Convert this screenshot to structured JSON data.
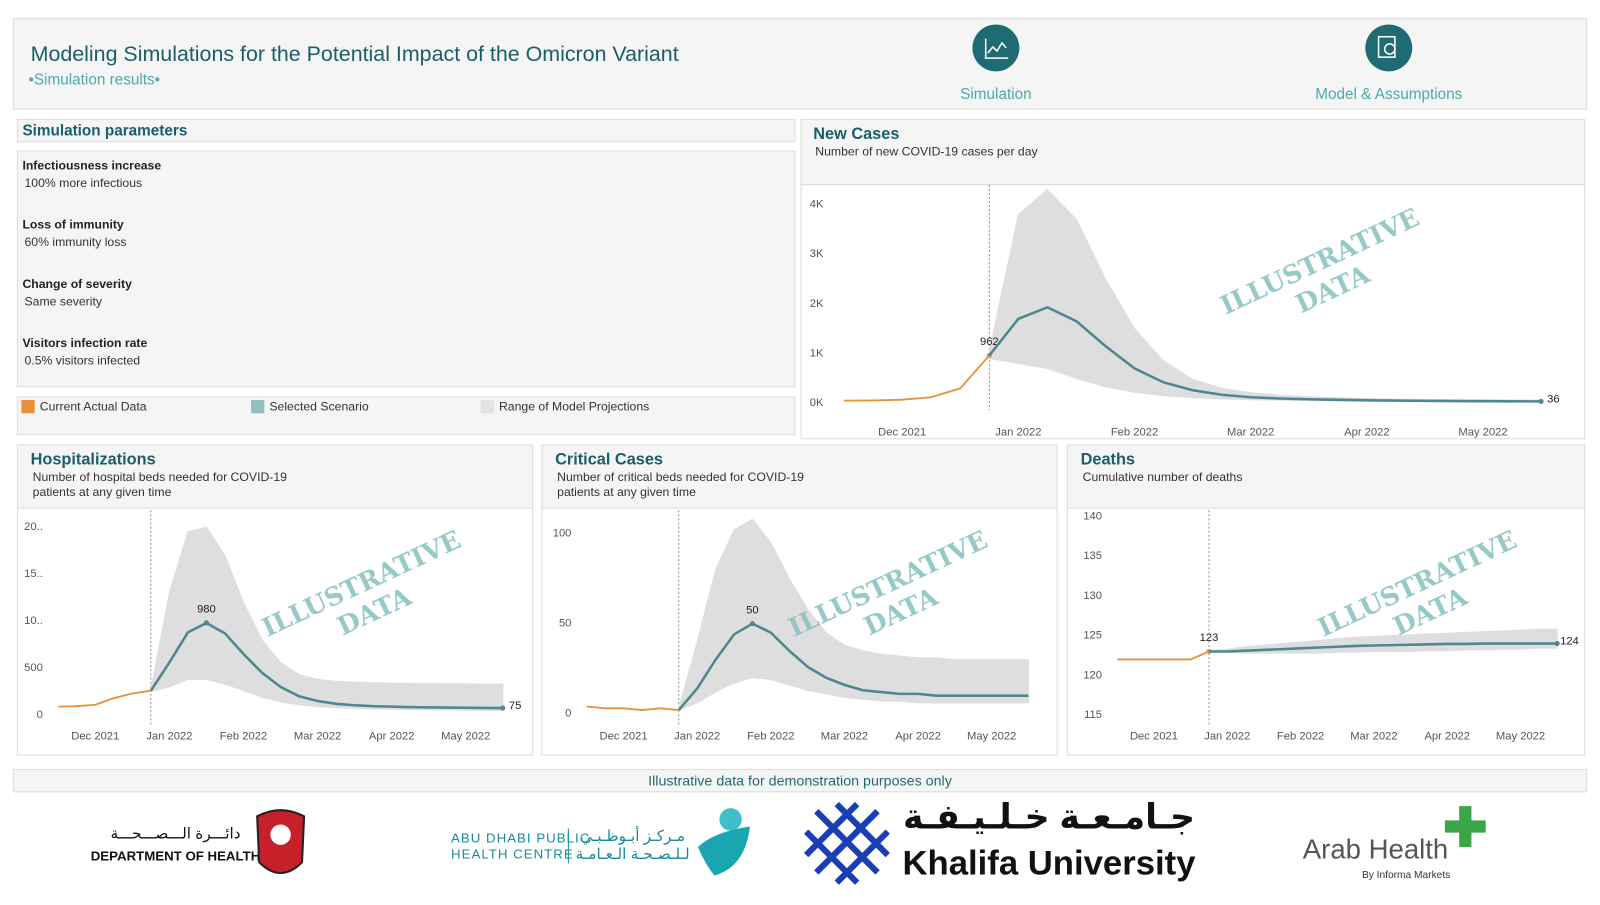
{
  "header": {
    "title": "Modeling Simulations for the Potential Impact of the Omicron Variant",
    "subtitle": "•Simulation results•",
    "nav": [
      "Simulation",
      "Model & Assumptions"
    ]
  },
  "parameters": {
    "title": "Simulation parameters",
    "items": [
      {
        "label": "Infectiousness increase",
        "value": "100% more infectious"
      },
      {
        "label": "Loss of immunity",
        "value": "60% immunity loss"
      },
      {
        "label": "Change of severity",
        "value": "Same severity"
      },
      {
        "label": "Visitors infection rate",
        "value": "0.5% visitors infected"
      }
    ]
  },
  "legend": [
    {
      "name": "Current Actual Data",
      "color": "#e8913a"
    },
    {
      "name": "Selected Scenario",
      "color": "#8fbfbf"
    },
    {
      "name": "Range of Model Projections",
      "color": "#e3e3e3"
    }
  ],
  "chart_data": [
    {
      "type": "line",
      "title": "New Cases",
      "subtitle": [
        "Number of new COVID-19 cases per day"
      ],
      "watermark": [
        "ILLUSTRATIVE",
        "DATA"
      ],
      "categories": [
        null,
        null,
        "Dec 2021",
        null,
        null,
        null,
        "Jan 2022",
        null,
        null,
        null,
        "Feb 2022",
        null,
        null,
        null,
        "Mar 2022",
        null,
        null,
        null,
        "Apr 2022",
        null,
        null,
        null,
        "May 2022",
        null,
        null,
        null
      ],
      "ylim": [
        -100,
        4400
      ],
      "yticks": [
        {
          "value": 0,
          "label": "0K"
        },
        {
          "value": 1000,
          "label": "1K"
        },
        {
          "value": 2000,
          "label": "2K"
        },
        {
          "value": 3000,
          "label": "3K"
        },
        {
          "value": 4000,
          "label": "4K"
        }
      ],
      "series": [
        {
          "color": "#e8913a",
          "values": [
            50,
            55,
            70,
            120,
            300,
            962,
            null,
            null,
            null,
            null,
            null,
            null,
            null,
            null,
            null,
            null,
            null,
            null,
            null,
            null,
            null,
            null,
            null,
            null,
            null,
            null
          ],
          "labeled_points": [
            5
          ]
        },
        {
          "color": "#4e878f",
          "values": [
            null,
            null,
            null,
            null,
            null,
            962,
            1700,
            1930,
            1650,
            1150,
            700,
            420,
            260,
            170,
            120,
            95,
            80,
            68,
            58,
            52,
            47,
            43,
            40,
            38,
            36,
            null
          ],
          "labeled_points": [
            24
          ]
        },
        {
          "color": "#dedede",
          "low": [
            null,
            null,
            null,
            null,
            null,
            900,
            800,
            700,
            500,
            330,
            220,
            150,
            110,
            85,
            70,
            60,
            52,
            46,
            41,
            37,
            34,
            31,
            29,
            27,
            26,
            null
          ],
          "high": [
            null,
            null,
            null,
            null,
            null,
            1050,
            3800,
            4300,
            3700,
            2500,
            1500,
            850,
            480,
            300,
            210,
            160,
            130,
            110,
            95,
            85,
            78,
            72,
            68,
            65,
            62,
            null
          ]
        }
      ]
    },
    {
      "type": "line",
      "title": "Hospitalizations",
      "subtitle": [
        "Number of hospital beds needed for COVID-19",
        "patients at any given time"
      ],
      "watermark": [
        "ILLUSTRATIVE",
        "DATA"
      ],
      "categories": [
        null,
        null,
        "Dec 2021",
        null,
        null,
        null,
        "Jan 2022",
        null,
        null,
        null,
        "Feb 2022",
        null,
        null,
        null,
        "Mar 2022",
        null,
        null,
        null,
        "Apr 2022",
        null,
        null,
        null,
        "May 2022",
        null,
        null,
        null
      ],
      "ylim": [
        -100,
        2180
      ],
      "yticks": [
        0,
        500,
        {
          "value": 1000,
          "label": "10.."
        },
        {
          "value": 1500,
          "label": "15.."
        },
        {
          "value": 2000,
          "label": "20.."
        }
      ],
      "series": [
        {
          "color": "#e8913a",
          "values": [
            90,
            95,
            110,
            180,
            230,
            260,
            null,
            null,
            null,
            null,
            null,
            null,
            null,
            null,
            null,
            null,
            null,
            null,
            null,
            null,
            null,
            null,
            null,
            null,
            null,
            null
          ],
          "labeled_points": []
        },
        {
          "color": "#4e878f",
          "values": [
            null,
            null,
            null,
            null,
            null,
            260,
            560,
            880,
            980,
            870,
            650,
            450,
            300,
            200,
            150,
            120,
            105,
            95,
            90,
            85,
            82,
            80,
            78,
            76,
            75,
            null
          ],
          "labeled_points": [
            8,
            24
          ]
        },
        {
          "color": "#dedede",
          "low": [
            null,
            null,
            null,
            null,
            null,
            250,
            300,
            380,
            380,
            330,
            260,
            190,
            140,
            110,
            90,
            80,
            72,
            66,
            62,
            58,
            56,
            54,
            52,
            50,
            49,
            null
          ],
          "high": [
            null,
            null,
            null,
            null,
            null,
            270,
            1300,
            1950,
            2000,
            1700,
            1200,
            800,
            560,
            430,
            380,
            360,
            350,
            345,
            340,
            338,
            335,
            333,
            332,
            330,
            330,
            null
          ]
        }
      ]
    },
    {
      "type": "line",
      "title": "Critical Cases",
      "subtitle": [
        "Number of critical beds needed for COVID-19",
        "patients at any given time"
      ],
      "watermark": [
        "ILLUSTRATIVE",
        "DATA"
      ],
      "categories": [
        null,
        null,
        "Dec 2021",
        null,
        null,
        null,
        "Jan 2022",
        null,
        null,
        null,
        "Feb 2022",
        null,
        null,
        null,
        "Mar 2022",
        null,
        null,
        null,
        "Apr 2022",
        null,
        null,
        null,
        "May 2022",
        null,
        null,
        null
      ],
      "ylim": [
        -6,
        113
      ],
      "yticks": [
        0,
        50,
        100
      ],
      "series": [
        {
          "color": "#e8913a",
          "values": [
            4,
            3,
            3,
            2,
            3,
            2,
            null,
            null,
            null,
            null,
            null,
            null,
            null,
            null,
            null,
            null,
            null,
            null,
            null,
            null,
            null,
            null,
            null,
            null,
            null,
            null
          ],
          "labeled_points": []
        },
        {
          "color": "#4e878f",
          "values": [
            null,
            null,
            null,
            null,
            null,
            2,
            14,
            30,
            44,
            50,
            45,
            35,
            26,
            20,
            16,
            13,
            12,
            11,
            11,
            10,
            10,
            10,
            10,
            10,
            10,
            null
          ],
          "labeled_points": [
            9
          ]
        },
        {
          "color": "#dedede",
          "low": [
            null,
            null,
            null,
            null,
            null,
            2,
            6,
            12,
            17,
            20,
            19,
            16,
            13,
            11,
            9,
            8,
            7,
            7,
            6,
            6,
            6,
            6,
            6,
            6,
            6,
            null
          ],
          "high": [
            null,
            null,
            null,
            null,
            null,
            3,
            40,
            80,
            102,
            108,
            95,
            75,
            58,
            45,
            38,
            35,
            33,
            32,
            31,
            31,
            30,
            30,
            30,
            30,
            30,
            null
          ]
        }
      ]
    },
    {
      "type": "line",
      "title": "Deaths",
      "subtitle": [
        "Cumulative number of deaths"
      ],
      "watermark": [
        "ILLUSTRATIVE",
        "DATA"
      ],
      "categories": [
        null,
        null,
        "Dec 2021",
        null,
        null,
        null,
        "Jan 2022",
        null,
        null,
        null,
        "Feb 2022",
        null,
        null,
        null,
        "Mar 2022",
        null,
        null,
        null,
        "Apr 2022",
        null,
        null,
        null,
        "May 2022",
        null,
        null,
        null
      ],
      "ylim": [
        113.8,
        140.8
      ],
      "yticks": [
        115,
        120,
        125,
        130,
        135,
        140
      ],
      "series": [
        {
          "color": "#e8913a",
          "values": [
            122,
            122,
            122,
            122,
            122,
            123,
            null,
            null,
            null,
            null,
            null,
            null,
            null,
            null,
            null,
            null,
            null,
            null,
            null,
            null,
            null,
            null,
            null,
            null,
            null,
            null
          ],
          "labeled_points": [
            5
          ]
        },
        {
          "color": "#4e878f",
          "values": [
            null,
            null,
            null,
            null,
            null,
            123,
            123,
            123.1,
            123.2,
            123.3,
            123.4,
            123.5,
            123.6,
            123.7,
            123.75,
            123.8,
            123.85,
            123.9,
            123.95,
            123.95,
            124,
            124,
            124,
            124,
            124,
            null
          ],
          "labeled_points": [
            24
          ]
        },
        {
          "color": "#dedede",
          "low": [
            null,
            null,
            null,
            null,
            null,
            123,
            122.9,
            122.8,
            122.8,
            122.8,
            122.8,
            122.8,
            122.9,
            122.9,
            123,
            123,
            123,
            123.1,
            123.1,
            123.2,
            123.2,
            123.3,
            123.3,
            123.4,
            123.4,
            null
          ],
          "high": [
            null,
            null,
            null,
            null,
            null,
            123.1,
            123.3,
            123.6,
            123.8,
            124,
            124.2,
            124.4,
            124.6,
            124.8,
            124.9,
            125,
            125.1,
            125.2,
            125.3,
            125.4,
            125.5,
            125.6,
            125.7,
            125.8,
            125.8,
            null
          ]
        }
      ]
    }
  ],
  "footer": {
    "note": "Illustrative data for demonstration purposes only"
  },
  "logos": {
    "doh": [
      "دائـــرة الـــصـــحـــة",
      "DEPARTMENT OF HEALTH"
    ],
    "adphc": [
      "ABU DHABI PUBLIC",
      "HEALTH CENTRE",
      "مـركـز أبـوظـبـي",
      "لـلـصـحـة الـعـامـة"
    ],
    "ku": [
      "جـامـعـة خـلـيـفـة",
      "Khalifa University"
    ],
    "ah": [
      "Arab Health",
      "By Informa Markets"
    ]
  }
}
